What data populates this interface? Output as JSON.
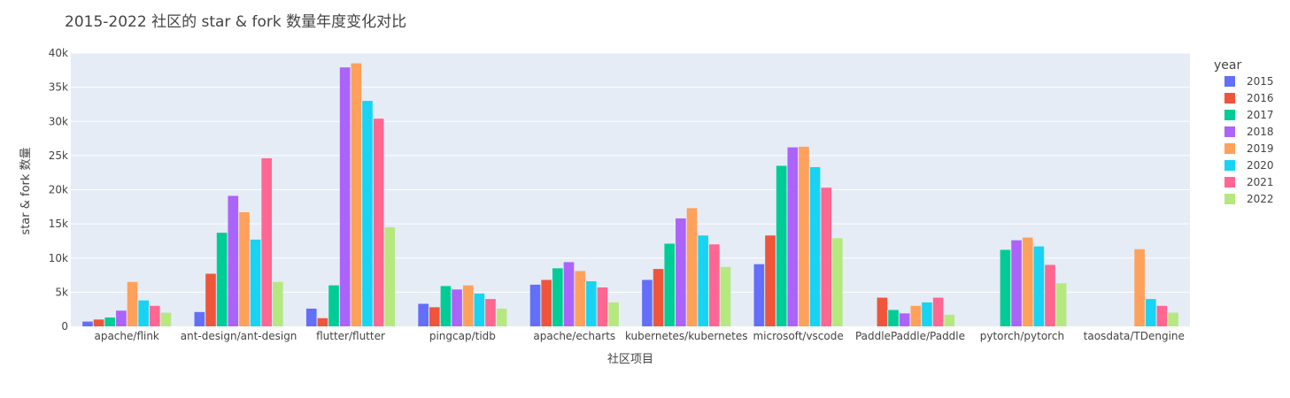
{
  "chart_data": {
    "type": "bar",
    "title": "2015-2022 社区的 star & fork 数量年度变化对比",
    "xlabel": "社区项目",
    "ylabel": "star & fork 数量",
    "ylim": [
      0,
      40000
    ],
    "yticks": [
      0,
      5000,
      10000,
      15000,
      20000,
      25000,
      30000,
      35000,
      40000
    ],
    "yticklabels": [
      "0",
      "5k",
      "10k",
      "15k",
      "20k",
      "25k",
      "30k",
      "35k",
      "40k"
    ],
    "grid": true,
    "legend_title": "year",
    "legend_position": "right",
    "categories": [
      "apache/flink",
      "ant-design/ant-design",
      "flutter/flutter",
      "pingcap/tidb",
      "apache/echarts",
      "kubernetes/kubernetes",
      "microsoft/vscode",
      "PaddlePaddle/Paddle",
      "pytorch/pytorch",
      "taosdata/TDengine"
    ],
    "series": [
      {
        "name": "2015",
        "color": "#636efa",
        "values": [
          700,
          2100,
          2600,
          3300,
          6100,
          6800,
          9100,
          0,
          0,
          0
        ]
      },
      {
        "name": "2016",
        "color": "#EF553B",
        "values": [
          1000,
          7700,
          1200,
          2800,
          6800,
          8400,
          13300,
          4200,
          0,
          0
        ]
      },
      {
        "name": "2017",
        "color": "#00cc96",
        "values": [
          1300,
          13700,
          6000,
          5900,
          8500,
          12100,
          23500,
          2400,
          11200,
          0
        ]
      },
      {
        "name": "2018",
        "color": "#ab63fa",
        "values": [
          2300,
          19100,
          37900,
          5400,
          9400,
          15800,
          26200,
          1900,
          12600,
          0
        ]
      },
      {
        "name": "2019",
        "color": "#FFA15A",
        "values": [
          6500,
          16700,
          38500,
          6000,
          8100,
          17300,
          26300,
          3000,
          13000,
          11300
        ]
      },
      {
        "name": "2020",
        "color": "#19d3f3",
        "values": [
          3800,
          12700,
          33000,
          4800,
          6600,
          13300,
          23300,
          3500,
          11700,
          4000
        ]
      },
      {
        "name": "2021",
        "color": "#FF6692",
        "values": [
          3000,
          24600,
          30400,
          4000,
          5700,
          12000,
          20300,
          4200,
          9000,
          3000
        ]
      },
      {
        "name": "2022",
        "color": "#B6E880",
        "values": [
          2000,
          6500,
          14500,
          2600,
          3500,
          8700,
          12900,
          1700,
          6300,
          2000
        ]
      }
    ]
  }
}
